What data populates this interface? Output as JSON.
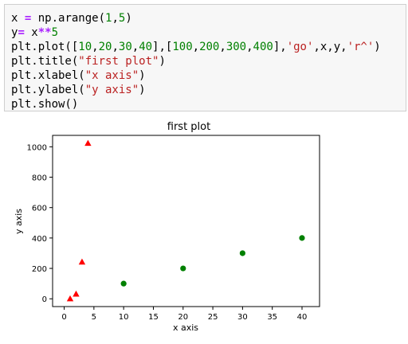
{
  "code_cell": {
    "lines": [
      [
        {
          "t": "x ",
          "c": ""
        },
        {
          "t": "=",
          "c": "op"
        },
        {
          "t": " np.arange(",
          "c": ""
        },
        {
          "t": "1",
          "c": "num"
        },
        {
          "t": ",",
          "c": ""
        },
        {
          "t": "5",
          "c": "num"
        },
        {
          "t": ")",
          "c": ""
        }
      ],
      [
        {
          "t": "y",
          "c": ""
        },
        {
          "t": "=",
          "c": "op"
        },
        {
          "t": " x",
          "c": ""
        },
        {
          "t": "**",
          "c": "op"
        },
        {
          "t": "5",
          "c": "num"
        }
      ],
      [
        {
          "t": "plt.plot([",
          "c": ""
        },
        {
          "t": "10",
          "c": "num"
        },
        {
          "t": ",",
          "c": ""
        },
        {
          "t": "20",
          "c": "num"
        },
        {
          "t": ",",
          "c": ""
        },
        {
          "t": "30",
          "c": "num"
        },
        {
          "t": ",",
          "c": ""
        },
        {
          "t": "40",
          "c": "num"
        },
        {
          "t": "],[",
          "c": ""
        },
        {
          "t": "100",
          "c": "num"
        },
        {
          "t": ",",
          "c": ""
        },
        {
          "t": "200",
          "c": "num"
        },
        {
          "t": ",",
          "c": ""
        },
        {
          "t": "300",
          "c": "num"
        },
        {
          "t": ",",
          "c": ""
        },
        {
          "t": "400",
          "c": "num"
        },
        {
          "t": "],",
          "c": ""
        },
        {
          "t": "'go'",
          "c": "str"
        },
        {
          "t": ",x,y,",
          "c": ""
        },
        {
          "t": "'r^'",
          "c": "str"
        },
        {
          "t": ")",
          "c": ""
        }
      ],
      [
        {
          "t": "plt.title(",
          "c": ""
        },
        {
          "t": "\"first plot\"",
          "c": "str"
        },
        {
          "t": ")",
          "c": ""
        }
      ],
      [
        {
          "t": "plt.xlabel(",
          "c": ""
        },
        {
          "t": "\"x axis\"",
          "c": "str"
        },
        {
          "t": ")",
          "c": ""
        }
      ],
      [
        {
          "t": "plt.ylabel(",
          "c": ""
        },
        {
          "t": "\"y axis\"",
          "c": "str"
        },
        {
          "t": ")",
          "c": ""
        }
      ],
      [
        {
          "t": "plt.show()",
          "c": ""
        }
      ]
    ]
  },
  "chart_data": {
    "type": "scatter",
    "title": "first plot",
    "xlabel": "x axis",
    "ylabel": "y axis",
    "xlim": [
      -1.95,
      42.95
    ],
    "ylim": [
      -51.15,
      1075.15
    ],
    "xticks": [
      0,
      5,
      10,
      15,
      20,
      25,
      30,
      35,
      40
    ],
    "yticks": [
      0,
      200,
      400,
      600,
      800,
      1000
    ],
    "grid": false,
    "series": [
      {
        "marker": "circle",
        "color": "#008000",
        "x": [
          10,
          20,
          30,
          40
        ],
        "y": [
          100,
          200,
          300,
          400
        ]
      },
      {
        "marker": "triangle",
        "color": "#ff0000",
        "x": [
          1,
          2,
          3,
          4
        ],
        "y": [
          1,
          32,
          243,
          1024
        ]
      }
    ]
  }
}
